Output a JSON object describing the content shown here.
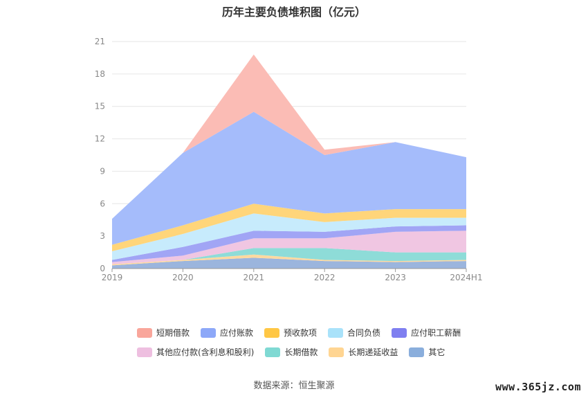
{
  "chart_data": {
    "type": "area",
    "title": "历年主要负债堆积图（亿元）",
    "categories": [
      "2019",
      "2020",
      "2021",
      "2022",
      "2023",
      "2024H1"
    ],
    "ylim": [
      0,
      21
    ],
    "yticks": [
      0,
      3,
      6,
      9,
      12,
      15,
      18,
      21
    ],
    "grid": true,
    "legend_position": "bottom",
    "stacked": true,
    "series": [
      {
        "name": "其它",
        "color": "#9bb5dd",
        "values": [
          0.3,
          0.7,
          1.0,
          0.7,
          0.6,
          0.7
        ]
      },
      {
        "name": "长期递延收益",
        "color": "#ffd9a0",
        "values": [
          0.1,
          0.1,
          0.3,
          0.1,
          0.1,
          0.1
        ]
      },
      {
        "name": "长期借款",
        "color": "#8edcd8",
        "values": [
          0.0,
          0.0,
          0.6,
          1.1,
          0.8,
          0.7
        ]
      },
      {
        "name": "其他应付款(含利息和股利)",
        "color": "#f0c6e2",
        "values": [
          0.2,
          0.4,
          0.9,
          0.9,
          1.9,
          2.0
        ]
      },
      {
        "name": "应付职工薪酬",
        "color": "#a1a5f5",
        "values": [
          0.2,
          0.8,
          0.7,
          0.6,
          0.5,
          0.5
        ]
      },
      {
        "name": "合同负债",
        "color": "#c7ebfc",
        "values": [
          0.8,
          1.2,
          1.6,
          0.9,
          0.8,
          0.7
        ]
      },
      {
        "name": "预收款项",
        "color": "#ffd57a",
        "values": [
          0.6,
          0.8,
          0.9,
          0.8,
          0.8,
          0.8
        ]
      },
      {
        "name": "应付账款",
        "color": "#a5bcfb",
        "values": [
          2.4,
          6.7,
          8.5,
          5.4,
          6.2,
          4.8
        ]
      },
      {
        "name": "短期借款",
        "color": "#fbbcb5",
        "values": [
          0.0,
          0.0,
          5.3,
          0.5,
          0.0,
          0.0
        ]
      }
    ]
  },
  "legend_rows": [
    [
      {
        "label": "短期借款",
        "color": "#f9a69b"
      },
      {
        "label": "应付账款",
        "color": "#8da8f8"
      },
      {
        "label": "预收款项",
        "color": "#ffc745"
      },
      {
        "label": "合同负债",
        "color": "#a9e2fa"
      },
      {
        "label": "应付职工薪酬",
        "color": "#7f7ff0"
      }
    ],
    [
      {
        "label": "其他应付款(含利息和股利)",
        "color": "#eebfe0"
      },
      {
        "label": "长期借款",
        "color": "#7fd9d3"
      },
      {
        "label": "长期递延收益",
        "color": "#ffd592"
      },
      {
        "label": "其它",
        "color": "#8aaedc"
      }
    ]
  ],
  "source": "数据来源：恒生聚源",
  "watermark": "www.365jz.com"
}
